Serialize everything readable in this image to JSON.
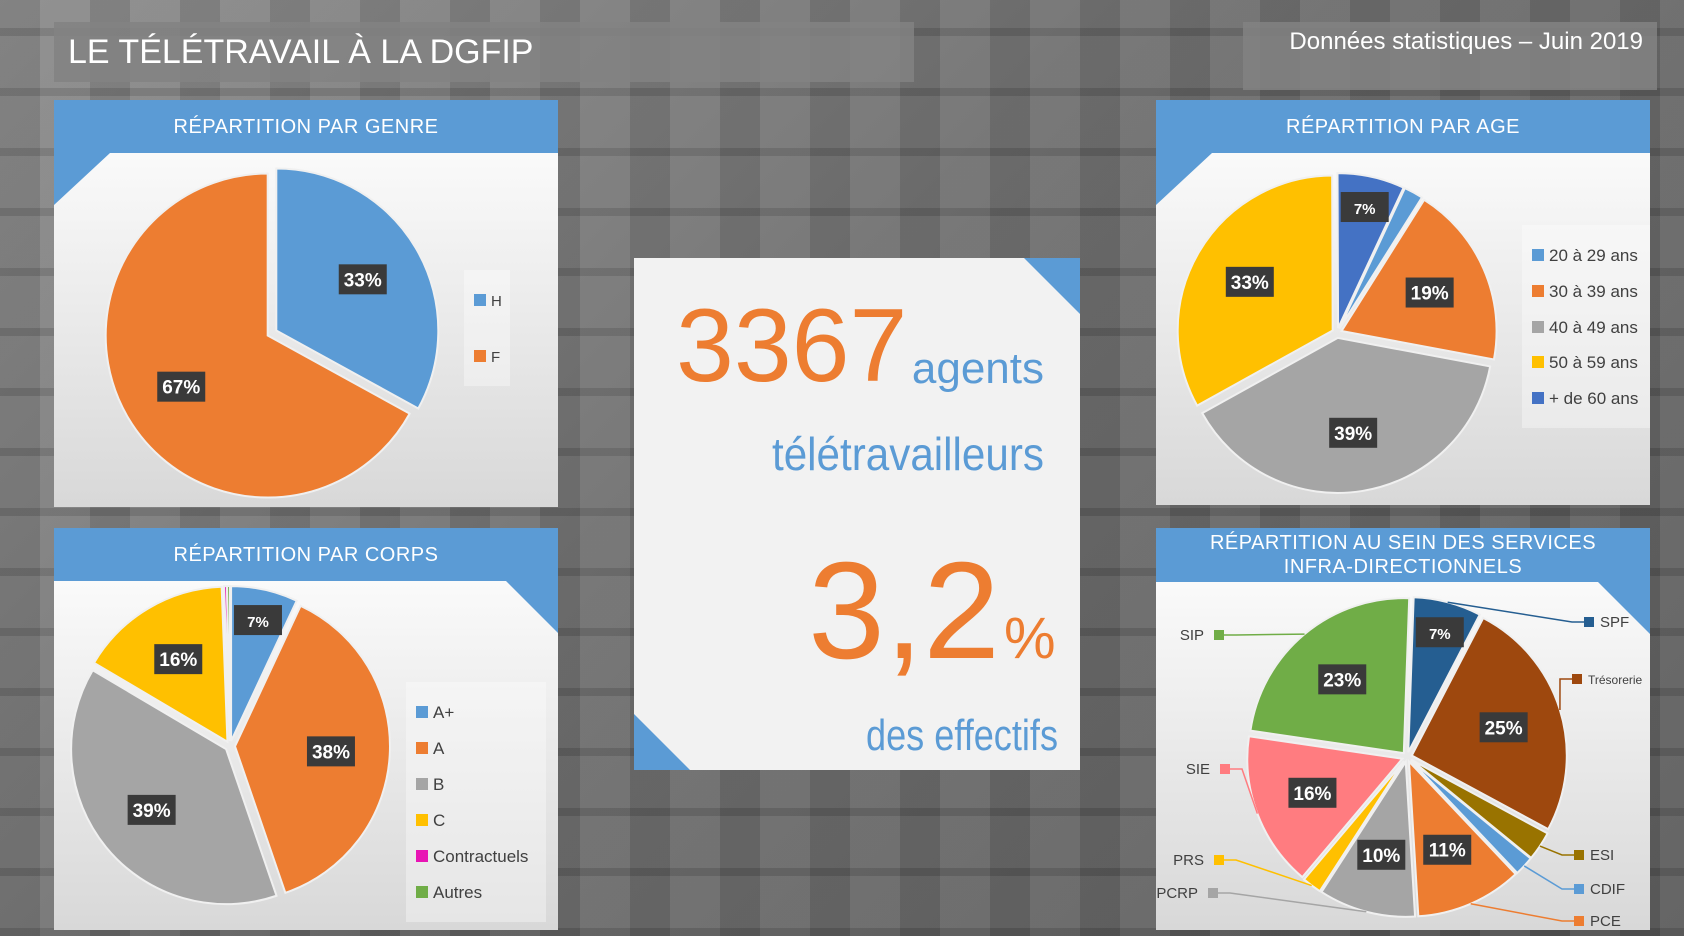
{
  "header": {
    "title": "LE TÉLÉTRAVAIL À LA DGFIP",
    "date": "Données statistiques – Juin 2019"
  },
  "kpi": {
    "number": "3367",
    "unit1": "agents",
    "unit2": "télétravailleurs",
    "percent": "3,2",
    "percent_sign": "%",
    "caption": "des effectifs"
  },
  "chart_data": [
    {
      "type": "pie",
      "title": "RÉPARTITION PAR GENRE",
      "categories": [
        "H",
        "F"
      ],
      "values": [
        33,
        67
      ],
      "value_labels": [
        "33%",
        "67%"
      ],
      "colors": [
        "#5b9bd5",
        "#ed7d31"
      ]
    },
    {
      "type": "pie",
      "title": "RÉPARTITION PAR AGE",
      "categories": [
        "20 à 29 ans",
        "30 à 39 ans",
        "40 à 49 ans",
        "50 à 59 ans",
        "+ de 60 ans"
      ],
      "values": [
        2,
        19,
        39,
        33,
        7
      ],
      "value_labels": [
        null,
        "19%",
        "39%",
        "33%",
        "7%"
      ],
      "colors": [
        "#5b9bd5",
        "#ed7d31",
        "#a5a5a5",
        "#ffc000",
        "#4472c4"
      ]
    },
    {
      "type": "pie",
      "title": "RÉPARTITION PAR CORPS",
      "categories": [
        "A+",
        "A",
        "B",
        "C",
        "Contractuels",
        "Autres"
      ],
      "values": [
        7,
        38,
        39,
        16,
        0.3,
        0.3
      ],
      "value_labels": [
        "7%",
        "38%",
        "39%",
        "16%",
        null,
        null
      ],
      "colors": [
        "#5b9bd5",
        "#ed7d31",
        "#a5a5a5",
        "#ffc000",
        "#e815b4",
        "#70ad47"
      ]
    },
    {
      "type": "pie",
      "title": [
        "RÉPARTITION AU SEIN DES SERVICES",
        "INFRA-DIRECTIONNELS"
      ],
      "categories": [
        "SPF",
        "Trésorerie",
        "ESI",
        "CDIF",
        "PCE",
        "PCRP",
        "PRS",
        "SIE",
        "SIP"
      ],
      "values": [
        7,
        25,
        3,
        2,
        11,
        10,
        2,
        16,
        23
      ],
      "value_labels": [
        "7%",
        "25%",
        null,
        null,
        "11%",
        "10%",
        null,
        "16%",
        "23%"
      ],
      "colors": [
        "#255e91",
        "#9e480e",
        "#997300",
        "#5b9bd5",
        "#ed7d31",
        "#a5a5a5",
        "#ffc000",
        "#ff7c80",
        "#70ad47"
      ]
    }
  ]
}
